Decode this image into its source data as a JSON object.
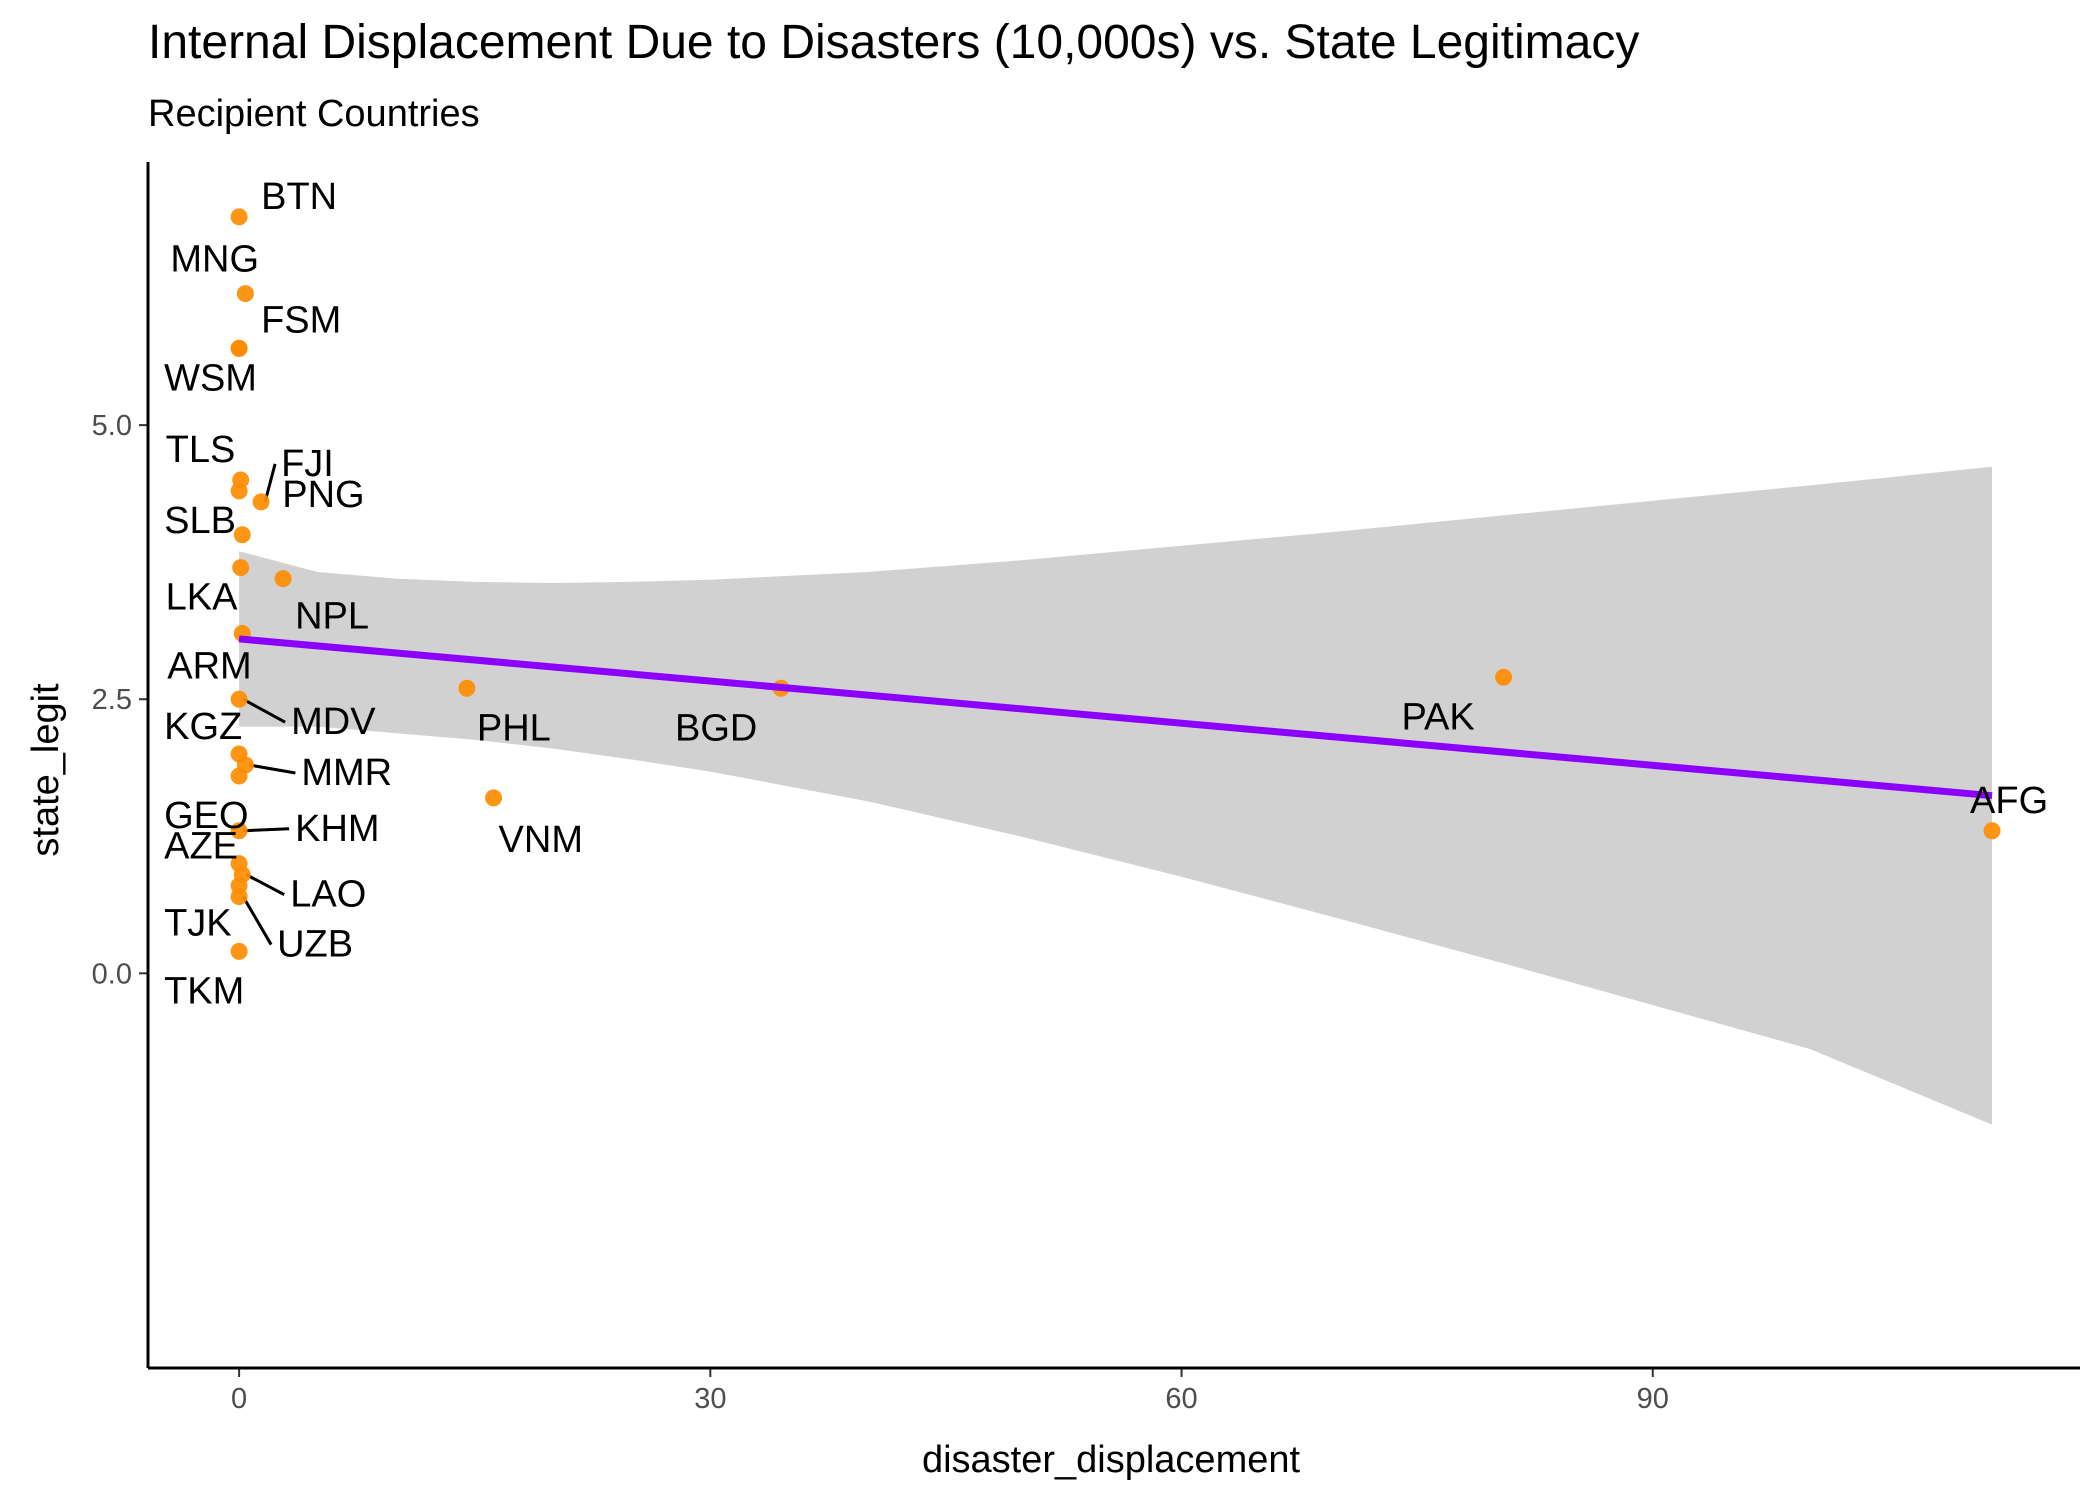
{
  "chart_data": {
    "type": "scatter",
    "title": "Internal Displacement Due to Disasters (10,000s) vs. State Legitimacy",
    "subtitle": "Recipient Countries",
    "xlabel": "disaster_displacement",
    "ylabel": "state_legit",
    "xlim": [
      -5.8,
      117.2
    ],
    "ylim": [
      -3.6,
      7.4
    ],
    "x_ticks": [
      0,
      30,
      60,
      90
    ],
    "x_tick_labels": [
      "0",
      "30",
      "60",
      "90"
    ],
    "y_ticks": [
      0,
      2.5,
      5
    ],
    "y_tick_labels": [
      "0.0",
      "2.5",
      "5.0"
    ],
    "grid": false,
    "legend": "none",
    "point_color": "#FF8C00",
    "line_color": "#8B00FF",
    "band_color": "#999999",
    "points": [
      {
        "label": "BTN",
        "x": 0.0,
        "y": 6.9
      },
      {
        "label": "MNG",
        "x": 0.4,
        "y": 6.2
      },
      {
        "label": "FSM",
        "x": 0.0,
        "y": 5.7
      },
      {
        "label": "WSM",
        "x": 0.0,
        "y": 5.7
      },
      {
        "label": "TLS",
        "x": 0.1,
        "y": 4.5
      },
      {
        "label": "SLB",
        "x": 0.0,
        "y": 4.4
      },
      {
        "label": "FJI",
        "x": 1.4,
        "y": 4.3
      },
      {
        "label": "PNG",
        "x": 0.2,
        "y": 4.0
      },
      {
        "label": "LKA",
        "x": 0.1,
        "y": 3.7
      },
      {
        "label": "NPL",
        "x": 2.8,
        "y": 3.6
      },
      {
        "label": "ARM",
        "x": 0.2,
        "y": 3.1
      },
      {
        "label": "MDV",
        "x": 0.0,
        "y": 2.5
      },
      {
        "label": "KGZ",
        "x": 0.0,
        "y": 2.0
      },
      {
        "label": "MMR",
        "x": 0.4,
        "y": 1.9
      },
      {
        "label": "GEO",
        "x": 0.0,
        "y": 1.8
      },
      {
        "label": "KHM",
        "x": 0.0,
        "y": 1.3
      },
      {
        "label": "AZE",
        "x": 0.0,
        "y": 1.0
      },
      {
        "label": "LAO",
        "x": 0.2,
        "y": 0.9
      },
      {
        "label": "TJK",
        "x": 0.0,
        "y": 0.8
      },
      {
        "label": "UZB",
        "x": 0.0,
        "y": 0.7
      },
      {
        "label": "TKM",
        "x": 0.0,
        "y": 0.2
      },
      {
        "label": "PHL",
        "x": 14.5,
        "y": 2.6
      },
      {
        "label": "BGD",
        "x": 34.5,
        "y": 2.6
      },
      {
        "label": "VNM",
        "x": 16.2,
        "y": 1.6
      },
      {
        "label": "PAK",
        "x": 80.5,
        "y": 2.7
      },
      {
        "label": "AFG",
        "x": 111.6,
        "y": 1.3
      }
    ],
    "fit_line": {
      "x": [
        0,
        111.6
      ],
      "y": [
        3.05,
        1.62
      ]
    },
    "confidence_band": {
      "x": [
        0,
        5,
        10,
        15,
        20,
        25,
        30,
        40,
        50,
        60,
        70,
        80,
        90,
        100,
        111.6
      ],
      "upper": [
        3.85,
        3.66,
        3.6,
        3.57,
        3.56,
        3.57,
        3.59,
        3.66,
        3.77,
        3.9,
        4.03,
        4.17,
        4.31,
        4.45,
        4.62
      ],
      "lower": [
        2.25,
        2.25,
        2.19,
        2.13,
        2.05,
        1.95,
        1.84,
        1.57,
        1.24,
        0.88,
        0.5,
        0.11,
        -0.29,
        -0.69,
        -1.38
      ]
    }
  }
}
